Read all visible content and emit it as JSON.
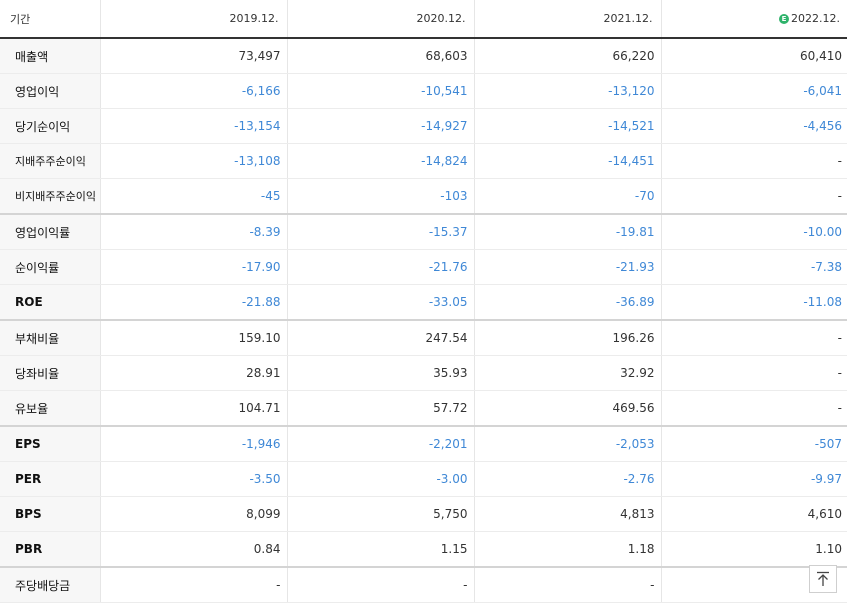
{
  "header": {
    "period_label": "기간",
    "estimate_badge": "E",
    "columns": [
      "2019.12.",
      "2020.12.",
      "2021.12.",
      "2022.12."
    ]
  },
  "rows": [
    {
      "label": "매출액",
      "values": [
        "73,497",
        "68,603",
        "66,220",
        "60,410"
      ]
    },
    {
      "label": "영업이익",
      "values": [
        "-6,166",
        "-10,541",
        "-13,120",
        "-6,041"
      ]
    },
    {
      "label": "당기순이익",
      "values": [
        "-13,154",
        "-14,927",
        "-14,521",
        "-4,456"
      ]
    },
    {
      "label": "지배주주순이익",
      "values": [
        "-13,108",
        "-14,824",
        "-14,451",
        "-"
      ]
    },
    {
      "label": "비지배주주순이익",
      "values": [
        "-45",
        "-103",
        "-70",
        "-"
      ]
    },
    {
      "label": "영업이익률",
      "values": [
        "-8.39",
        "-15.37",
        "-19.81",
        "-10.00"
      ]
    },
    {
      "label": "순이익률",
      "values": [
        "-17.90",
        "-21.76",
        "-21.93",
        "-7.38"
      ]
    },
    {
      "label": "ROE",
      "values": [
        "-21.88",
        "-33.05",
        "-36.89",
        "-11.08"
      ]
    },
    {
      "label": "부채비율",
      "values": [
        "159.10",
        "247.54",
        "196.26",
        "-"
      ]
    },
    {
      "label": "당좌비율",
      "values": [
        "28.91",
        "35.93",
        "32.92",
        "-"
      ]
    },
    {
      "label": "유보율",
      "values": [
        "104.71",
        "57.72",
        "469.56",
        "-"
      ]
    },
    {
      "label": "EPS",
      "values": [
        "-1,946",
        "-2,201",
        "-2,053",
        "-507"
      ]
    },
    {
      "label": "PER",
      "values": [
        "-3.50",
        "-3.00",
        "-2.76",
        "-9.97"
      ]
    },
    {
      "label": "BPS",
      "values": [
        "8,099",
        "5,750",
        "4,813",
        "4,610"
      ]
    },
    {
      "label": "PBR",
      "values": [
        "0.84",
        "1.15",
        "1.18",
        "1.10"
      ]
    },
    {
      "label": "주당배당금",
      "values": [
        "-",
        "-",
        "-",
        ""
      ]
    }
  ],
  "colors": {
    "negative": "#3f88d6",
    "estimate_badge": "#2fb36b",
    "label_bg": "#f7f7f7"
  },
  "icons": {
    "scroll_top": "arrow-up-to-line-icon"
  }
}
